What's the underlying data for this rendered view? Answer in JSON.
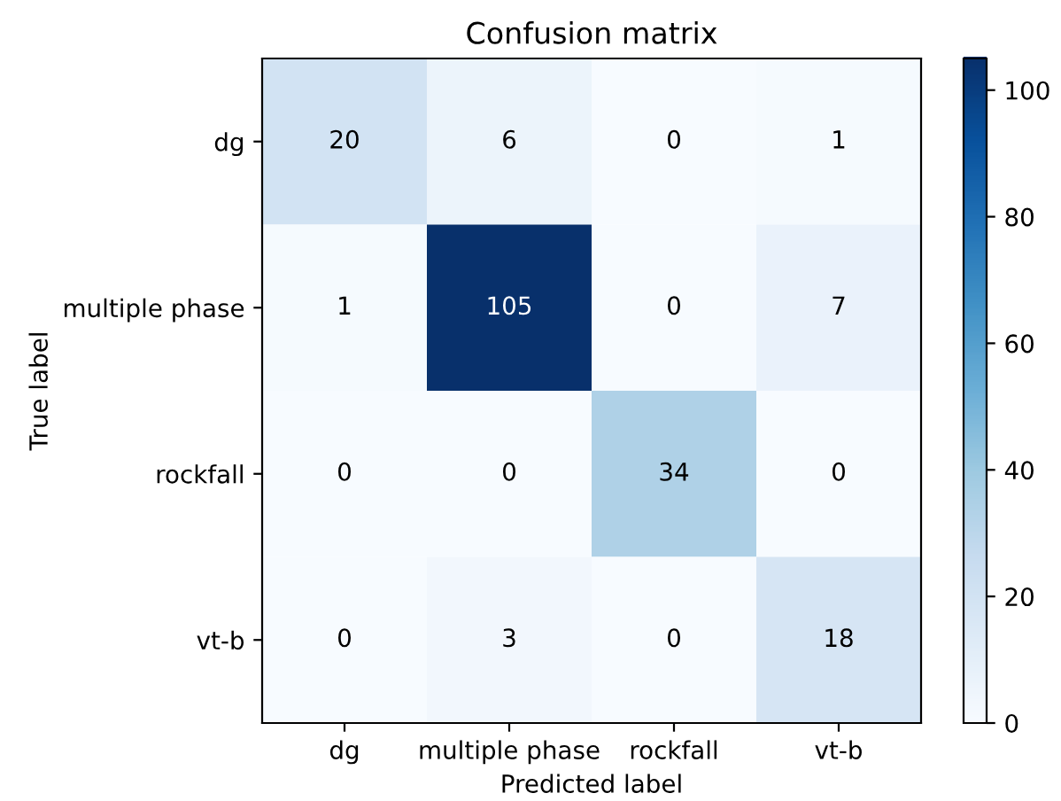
{
  "chart_data": {
    "type": "heatmap",
    "title": "Confusion matrix",
    "xlabel": "Predicted label",
    "ylabel": "True label",
    "categories": [
      "dg",
      "multiple phase",
      "rockfall",
      "vt-b"
    ],
    "y_categories": [
      "dg",
      "multiple phase",
      "rockfall",
      "vt-b"
    ],
    "cells": [
      [
        20,
        6,
        0,
        1
      ],
      [
        1,
        105,
        0,
        7
      ],
      [
        0,
        0,
        34,
        0
      ],
      [
        0,
        3,
        0,
        18
      ]
    ],
    "clim": [
      0,
      105
    ],
    "cticks": [
      0,
      20,
      40,
      60,
      80,
      100
    ],
    "data_labels": true
  }
}
